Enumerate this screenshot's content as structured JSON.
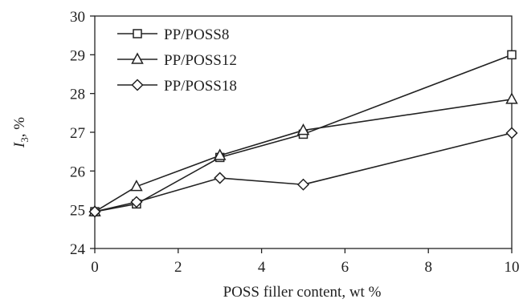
{
  "chart_data": {
    "type": "line",
    "title": "",
    "xlabel": "POSS filler content, wt %",
    "ylabel_main": "I",
    "ylabel_sub": "3",
    "ylabel_rest": ",  %",
    "xlim": [
      0,
      10
    ],
    "ylim": [
      24,
      30
    ],
    "xticks": [
      0,
      2,
      4,
      6,
      8,
      10
    ],
    "yticks": [
      24,
      25,
      26,
      27,
      28,
      29,
      30
    ],
    "grid": false,
    "legend_position": "top-left",
    "series": [
      {
        "name": "PP/POSS8",
        "marker": "square",
        "x": [
          0,
          1,
          3,
          5,
          10
        ],
        "y": [
          24.95,
          25.15,
          26.35,
          26.95,
          29.0
        ]
      },
      {
        "name": "PP/POSS12",
        "marker": "triangle",
        "x": [
          0,
          1,
          3,
          5,
          10
        ],
        "y": [
          24.95,
          25.6,
          26.4,
          27.05,
          27.85
        ]
      },
      {
        "name": "PP/POSS18",
        "marker": "diamond",
        "x": [
          0,
          1,
          3,
          5,
          10
        ],
        "y": [
          24.95,
          25.2,
          25.82,
          25.65,
          26.98
        ]
      }
    ]
  }
}
